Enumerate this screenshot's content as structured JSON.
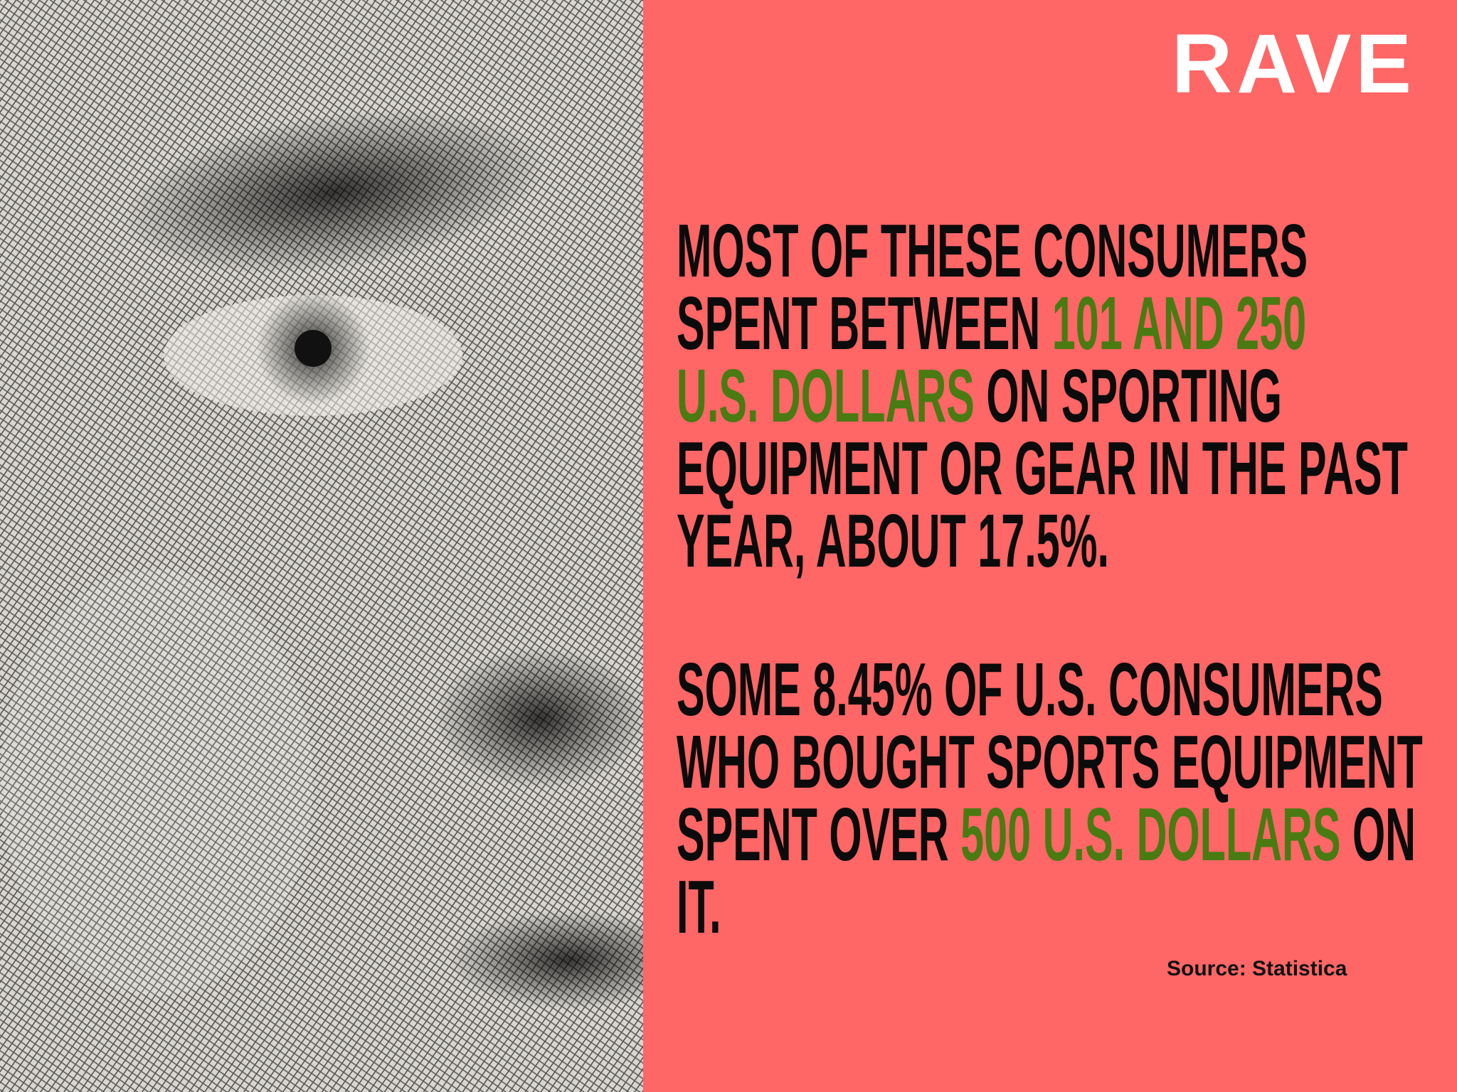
{
  "logo": "RAVE",
  "paragraphs": [
    {
      "lines": [
        [
          {
            "text": "MOST OF THESE CONSUMERS",
            "color": "#0b0b0b"
          }
        ],
        [
          {
            "text": "SPENT BETWEEN ",
            "color": "#0b0b0b"
          },
          {
            "text": "101 AND 250",
            "color": "#497b12"
          }
        ],
        [
          {
            "text": "U.S. DOLLARS",
            "color": "#497b12"
          },
          {
            "text": " ON SPORTING",
            "color": "#0b0b0b"
          }
        ],
        [
          {
            "text": "EQUIPMENT OR GEAR IN THE PAST",
            "color": "#0b0b0b"
          }
        ],
        [
          {
            "text": "YEAR, ABOUT 17.5%.",
            "color": "#0b0b0b"
          }
        ]
      ]
    },
    {
      "lines": [
        [
          {
            "text": "SOME 8.45% OF U.S. CONSUMERS",
            "color": "#0b0b0b"
          }
        ],
        [
          {
            "text": "WHO BOUGHT SPORTS EQUIPMENT",
            "color": "#0b0b0b"
          }
        ],
        [
          {
            "text": "SPENT OVER ",
            "color": "#0b0b0b"
          },
          {
            "text": "500 U.S. DOLLARS",
            "color": "#497b12"
          },
          {
            "text": " ON",
            "color": "#0b0b0b"
          }
        ],
        [
          {
            "text": "IT.",
            "color": "#0b0b0b"
          }
        ]
      ]
    }
  ],
  "source": "Source: Statistica"
}
